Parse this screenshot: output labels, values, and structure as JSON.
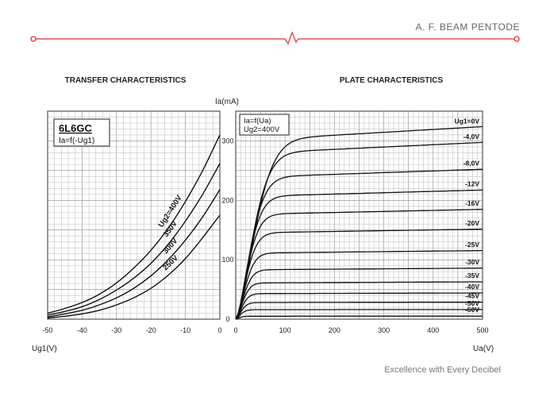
{
  "header": {
    "title": "A. F. BEAM PENTODE",
    "accent_color": "#e4312b"
  },
  "footer": {
    "slogan": "Excellence with Every Decibel"
  },
  "chart_data": [
    {
      "type": "line",
      "title": "TRANSFER CHARACTERISTICS",
      "box_title": "6L6GC",
      "box_subtitle": "Ia=f(-Ug1)",
      "xlabel": "Ug1(V)",
      "ylabel": "Ia(mA)",
      "xlim": [
        -50,
        0
      ],
      "ylim": [
        0,
        350
      ],
      "x_ticks": [
        "-50",
        "-40",
        "-30",
        "-20",
        "-10",
        "0"
      ],
      "y_ticks": [
        "0",
        "100",
        "200",
        "300"
      ],
      "grid": true,
      "series": [
        {
          "name": "250V",
          "label": "250V",
          "x": [
            -50,
            -45,
            -40,
            -35,
            -30,
            -25,
            -20,
            -15,
            -10,
            -5,
            0
          ],
          "y": [
            2,
            5,
            9,
            15,
            24,
            36,
            52,
            74,
            102,
            137,
            175
          ]
        },
        {
          "name": "300V",
          "label": "300V",
          "x": [
            -50,
            -45,
            -40,
            -35,
            -30,
            -25,
            -20,
            -15,
            -10,
            -5,
            0
          ],
          "y": [
            4,
            9,
            15,
            24,
            36,
            52,
            73,
            100,
            133,
            172,
            218
          ]
        },
        {
          "name": "350V",
          "label": "350V",
          "x": [
            -50,
            -45,
            -40,
            -35,
            -30,
            -25,
            -20,
            -15,
            -10,
            -5,
            0
          ],
          "y": [
            7,
            13,
            21,
            33,
            49,
            69,
            94,
            126,
            165,
            210,
            262
          ]
        },
        {
          "name": "Ug2=400V",
          "label": "Ug2=400V",
          "x": [
            -50,
            -45,
            -40,
            -35,
            -30,
            -25,
            -20,
            -15,
            -10,
            -5,
            0
          ],
          "y": [
            10,
            18,
            28,
            42,
            61,
            86,
            116,
            153,
            198,
            250,
            310
          ]
        }
      ]
    },
    {
      "type": "line",
      "title": "PLATE CHARACTERISTICS",
      "box_title": "Ia=f(Ua)",
      "box_subtitle": "Ug2=400V",
      "xlabel": "Ua(V)",
      "xlim": [
        0,
        500
      ],
      "ylim": [
        0,
        350
      ],
      "x_ticks": [
        "0",
        "100",
        "200",
        "300",
        "400",
        "500"
      ],
      "grid": true,
      "curves": [
        {
          "label": "Ug1=0V",
          "sat": 300,
          "knee": 50,
          "slope": 0.08
        },
        {
          "label": "-4,0V",
          "sat": 278,
          "knee": 44,
          "slope": 0.07
        },
        {
          "label": "-8,0V",
          "sat": 238,
          "knee": 38,
          "slope": 0.06
        },
        {
          "label": "-12V",
          "sat": 206,
          "knee": 34,
          "slope": 0.055
        },
        {
          "label": "-16V",
          "sat": 176,
          "knee": 31,
          "slope": 0.05
        },
        {
          "label": "-20V",
          "sat": 145,
          "knee": 28,
          "slope": 0.045
        },
        {
          "label": "-25V",
          "sat": 111,
          "knee": 25,
          "slope": 0.04
        },
        {
          "label": "-30V",
          "sat": 83,
          "knee": 22,
          "slope": 0.035
        },
        {
          "label": "-35V",
          "sat": 61,
          "knee": 19,
          "slope": 0.03
        },
        {
          "label": "-40V",
          "sat": 43,
          "knee": 17,
          "slope": 0.025
        },
        {
          "label": "-45V",
          "sat": 28,
          "knee": 15,
          "slope": 0.02
        },
        {
          "label": "-50V",
          "sat": 16,
          "knee": 13,
          "slope": 0.015
        },
        {
          "label": "-60V",
          "sat": 5,
          "knee": 10,
          "slope": 0.008
        }
      ]
    }
  ]
}
